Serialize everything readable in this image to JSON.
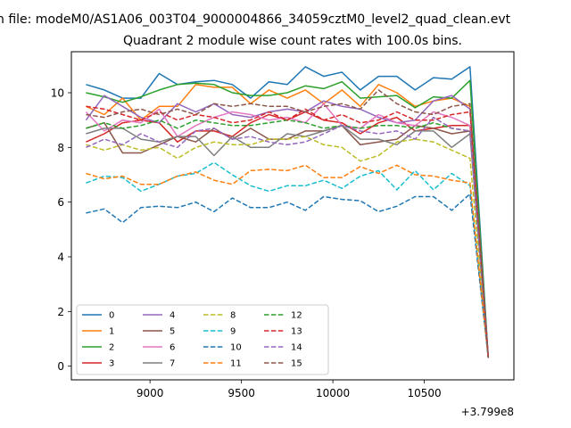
{
  "figure": {
    "suptitle": "n file: modeM0/AS1A06_003T04_9000004866_34059cztM0_level2_quad_clean.evt"
  },
  "chart_data": {
    "type": "line",
    "title": "Quadrant 2 module wise count rates with 100.0s bins.",
    "xlabel": "",
    "ylabel": "",
    "x_offset_label": "+3.799e8",
    "xlim": [
      8570,
      10990
    ],
    "ylim": [
      -0.5,
      11.5
    ],
    "x_ticks": [
      9000,
      9500,
      10000,
      10500
    ],
    "y_ticks": [
      0,
      2,
      4,
      6,
      8,
      10
    ],
    "grid": false,
    "legend_position": "lower-left",
    "legend_columns": 4,
    "x": [
      8650,
      8750,
      8850,
      8950,
      9050,
      9150,
      9250,
      9350,
      9450,
      9550,
      9650,
      9750,
      9850,
      9950,
      10050,
      10150,
      10250,
      10350,
      10450,
      10550,
      10650,
      10750,
      10850
    ],
    "series": [
      {
        "name": "0",
        "color": "#1f77b4",
        "dash": "solid",
        "values": [
          10.3,
          10.1,
          9.8,
          9.8,
          10.7,
          10.3,
          10.4,
          10.45,
          10.3,
          9.8,
          10.4,
          10.3,
          10.95,
          10.6,
          10.75,
          10.1,
          10.6,
          10.6,
          10.1,
          10.55,
          10.5,
          10.95,
          0.3
        ]
      },
      {
        "name": "1",
        "color": "#ff7f0e",
        "dash": "solid",
        "values": [
          9.5,
          9.2,
          9.8,
          9.0,
          9.5,
          9.5,
          10.3,
          10.2,
          10.2,
          9.6,
          10.1,
          9.8,
          10.1,
          9.6,
          10.1,
          9.5,
          10.3,
          10.0,
          9.5,
          9.7,
          9.8,
          9.5,
          0.3
        ]
      },
      {
        "name": "2",
        "color": "#2ca02c",
        "dash": "solid",
        "values": [
          10.0,
          9.85,
          9.65,
          9.85,
          10.1,
          10.3,
          10.35,
          10.3,
          10.0,
          9.9,
          9.9,
          10.0,
          10.25,
          10.15,
          10.4,
          9.8,
          9.85,
          9.9,
          9.45,
          9.85,
          9.8,
          10.45,
          0.3
        ]
      },
      {
        "name": "3",
        "color": "#d62728",
        "dash": "solid",
        "values": [
          8.2,
          8.5,
          8.9,
          9.0,
          8.9,
          8.2,
          8.6,
          8.6,
          8.4,
          8.9,
          9.2,
          9.0,
          9.3,
          9.0,
          8.9,
          8.5,
          8.9,
          9.1,
          8.6,
          8.7,
          8.8,
          8.8,
          0.3
        ]
      },
      {
        "name": "4",
        "color": "#9467bd",
        "dash": "solid",
        "values": [
          9.0,
          9.9,
          9.5,
          9.1,
          8.9,
          9.6,
          9.3,
          9.6,
          9.2,
          9.1,
          9.3,
          9.4,
          9.3,
          9.7,
          9.5,
          9.4,
          9.1,
          8.9,
          9.0,
          9.7,
          9.9,
          9.4,
          0.3
        ]
      },
      {
        "name": "5",
        "color": "#8c564b",
        "dash": "solid",
        "values": [
          8.7,
          8.9,
          7.8,
          7.8,
          8.1,
          8.4,
          8.2,
          8.7,
          8.3,
          8.7,
          8.3,
          8.3,
          8.6,
          8.6,
          8.8,
          8.1,
          8.2,
          8.3,
          8.8,
          8.7,
          8.5,
          8.6,
          0.3
        ]
      },
      {
        "name": "6",
        "color": "#e377c2",
        "dash": "solid",
        "values": [
          9.3,
          8.6,
          9.0,
          8.9,
          9.4,
          8.4,
          8.8,
          9.1,
          9.3,
          9.2,
          9.0,
          9.1,
          8.9,
          9.6,
          8.8,
          8.7,
          9.2,
          8.9,
          8.8,
          9.3,
          9.1,
          8.8,
          0.3
        ]
      },
      {
        "name": "7",
        "color": "#7f7f7f",
        "dash": "solid",
        "values": [
          8.5,
          8.7,
          8.7,
          8.3,
          8.2,
          8.4,
          8.4,
          7.7,
          8.4,
          8.0,
          8.0,
          8.5,
          8.4,
          8.6,
          8.8,
          8.3,
          8.3,
          8.1,
          8.6,
          8.6,
          8.0,
          8.5,
          0.3
        ]
      },
      {
        "name": "8",
        "color": "#bcbd22",
        "dash": "dashed",
        "values": [
          8.1,
          7.9,
          8.1,
          7.9,
          8.0,
          7.6,
          8.0,
          8.2,
          8.1,
          8.1,
          8.3,
          8.3,
          8.4,
          8.1,
          8.0,
          7.5,
          7.7,
          8.2,
          8.3,
          8.2,
          7.9,
          7.6,
          0.3
        ]
      },
      {
        "name": "9",
        "color": "#17becf",
        "dash": "dashed",
        "values": [
          6.7,
          6.95,
          6.9,
          6.4,
          6.65,
          6.95,
          7.05,
          7.45,
          7.0,
          6.6,
          6.4,
          6.6,
          6.6,
          6.8,
          6.5,
          6.95,
          7.15,
          6.45,
          7.15,
          6.45,
          7.05,
          6.6,
          0.3
        ]
      },
      {
        "name": "10",
        "color": "#1f77b4",
        "dash": "dashed",
        "values": [
          5.6,
          5.75,
          5.25,
          5.8,
          5.85,
          5.8,
          6.0,
          5.65,
          6.15,
          5.8,
          5.8,
          6.0,
          5.7,
          6.2,
          6.1,
          6.05,
          5.65,
          5.85,
          6.2,
          6.2,
          5.7,
          6.3,
          0.3
        ]
      },
      {
        "name": "11",
        "color": "#ff7f0e",
        "dash": "dashed",
        "values": [
          7.05,
          6.85,
          6.95,
          6.65,
          6.65,
          6.95,
          7.1,
          6.8,
          6.65,
          7.15,
          7.2,
          7.15,
          7.35,
          6.9,
          6.9,
          7.3,
          7.05,
          7.35,
          7.0,
          6.95,
          6.8,
          6.7,
          0.3
        ]
      },
      {
        "name": "12",
        "color": "#2ca02c",
        "dash": "dashed",
        "values": [
          8.7,
          8.9,
          8.7,
          8.8,
          9.0,
          8.7,
          9.0,
          8.9,
          8.8,
          8.8,
          8.9,
          9.0,
          8.9,
          8.7,
          8.8,
          8.7,
          8.8,
          8.8,
          8.7,
          8.9,
          8.7,
          8.6,
          0.3
        ]
      },
      {
        "name": "13",
        "color": "#d62728",
        "dash": "dashed",
        "values": [
          9.5,
          9.4,
          9.2,
          9.0,
          9.3,
          9.0,
          9.2,
          9.1,
          8.9,
          9.0,
          9.3,
          9.0,
          9.4,
          9.0,
          9.2,
          8.9,
          9.0,
          9.3,
          9.0,
          9.0,
          9.2,
          9.3,
          0.3
        ]
      },
      {
        "name": "14",
        "color": "#9467bd",
        "dash": "dashed",
        "values": [
          8.0,
          8.3,
          8.1,
          8.5,
          8.2,
          8.0,
          8.6,
          8.7,
          8.3,
          8.4,
          8.2,
          8.1,
          8.2,
          8.5,
          8.8,
          8.6,
          8.5,
          8.6,
          8.3,
          9.1,
          8.7,
          8.6,
          0.3
        ]
      },
      {
        "name": "15",
        "color": "#8c564b",
        "dash": "dashed",
        "values": [
          9.2,
          9.1,
          9.3,
          9.4,
          9.2,
          9.4,
          9.2,
          9.6,
          9.5,
          9.6,
          9.5,
          9.5,
          9.3,
          9.5,
          9.6,
          9.4,
          10.1,
          9.6,
          9.3,
          9.2,
          9.5,
          9.6,
          0.3
        ]
      }
    ]
  }
}
